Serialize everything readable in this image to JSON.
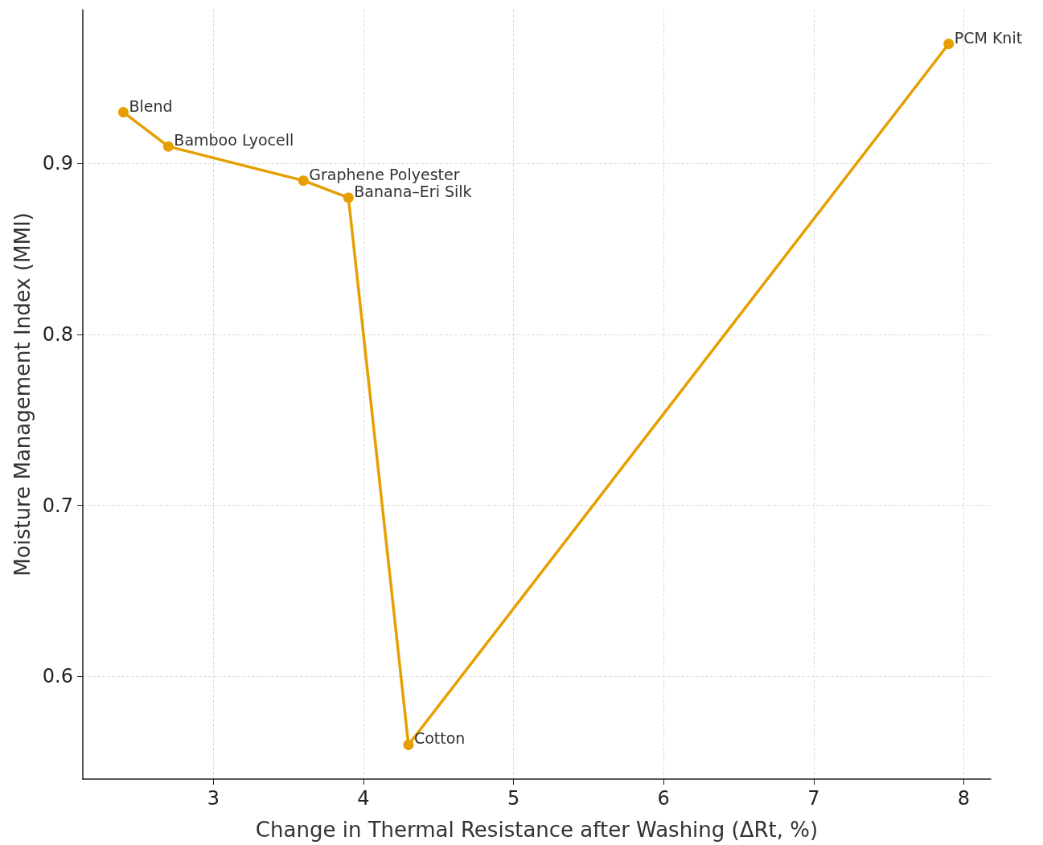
{
  "chart_data": {
    "type": "line",
    "xlabel": "Change in Thermal Resistance after Washing (ΔRt, %)",
    "ylabel": "Moisture Management Index (MMI)",
    "x": [
      2.4,
      2.7,
      3.6,
      3.9,
      4.3,
      7.9
    ],
    "series": [
      {
        "color": "#e69f00",
        "values": [
          0.93,
          0.91,
          0.89,
          0.88,
          0.56,
          0.97
        ]
      }
    ],
    "annotations": [
      {
        "text": "Blend",
        "x": 2.4,
        "y": 0.93
      },
      {
        "text": "Bamboo Lyocell",
        "x": 2.7,
        "y": 0.91
      },
      {
        "text": "Graphene Polyester",
        "x": 3.6,
        "y": 0.89
      },
      {
        "text": "Banana–Eri Silk",
        "x": 3.9,
        "y": 0.88
      },
      {
        "text": "Cotton",
        "x": 4.3,
        "y": 0.56
      },
      {
        "text": "PCM Knit",
        "x": 7.9,
        "y": 0.97
      }
    ],
    "xlim": [
      2.13,
      8.18
    ],
    "xticks": [
      3,
      4,
      5,
      6,
      7,
      8
    ],
    "ylim": [
      0.54,
      0.99
    ],
    "yticks": [
      0.6,
      0.7,
      0.8,
      0.9
    ],
    "grid": true,
    "marker": "circle",
    "line_style": "solid"
  }
}
